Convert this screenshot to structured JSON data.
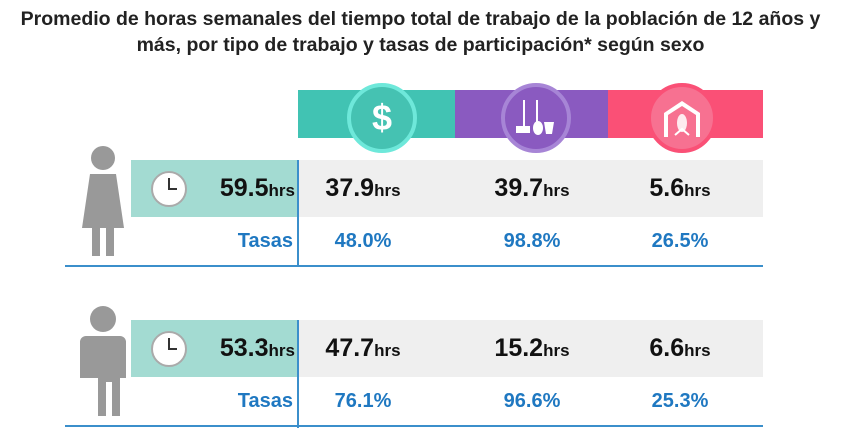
{
  "title": "Promedio de horas semanales del tiempo total de trabajo de la población de 12 años y más, por tipo de trabajo y tasas de participación* según sexo",
  "colors": {
    "remunerado": "#41c3b3",
    "domestico": "#8a5ac0",
    "comunidad": "#fa5076",
    "total_cell": "#a3dbd2",
    "rates": "#1f78c1"
  },
  "columns": [
    {
      "icon": "dollar-icon"
    },
    {
      "icon": "broom-bucket-icon"
    },
    {
      "icon": "house-corn-icon"
    }
  ],
  "unit": "hrs",
  "rate_label": "Tasas",
  "chart_data": {
    "type": "table",
    "rows": [
      {
        "sex_icon": "woman-icon",
        "total": "59.5",
        "hours": [
          "37.9",
          "39.7",
          "5.6"
        ],
        "rates": [
          "48.0%",
          "98.8%",
          "26.5%"
        ]
      },
      {
        "sex_icon": "man-icon",
        "total": "53.3",
        "hours": [
          "47.7",
          "15.2",
          "6.6"
        ],
        "rates": [
          "76.1%",
          "96.6%",
          "25.3%"
        ]
      }
    ]
  }
}
